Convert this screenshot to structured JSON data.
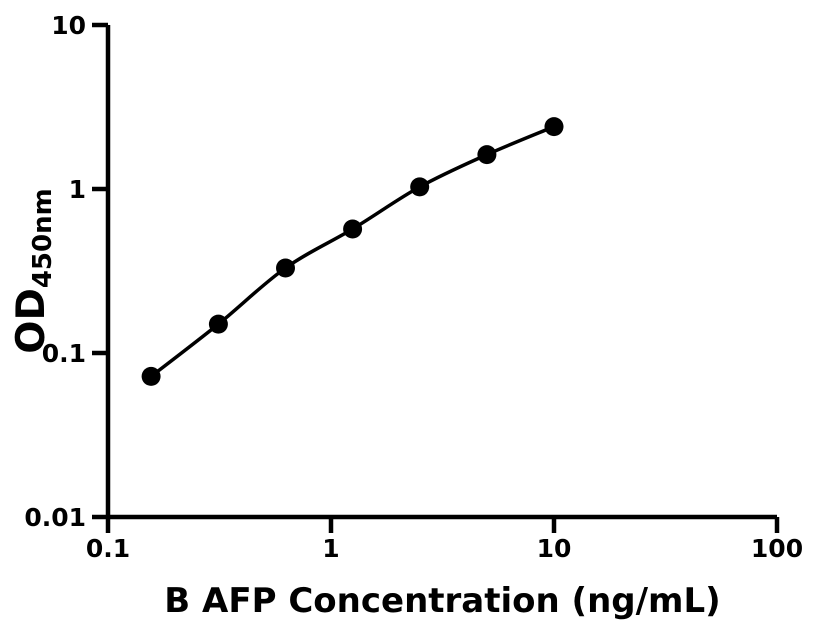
{
  "figure": {
    "background": "#ffffff"
  },
  "chart_data": {
    "type": "line",
    "subtype": "scatter-with-smooth-fit-curve",
    "title": "",
    "xlabel": "B AFP Concentration (ng/mL)",
    "ylabel_main": "OD",
    "ylabel_sub": "450nm",
    "x_scale": "log",
    "y_scale": "log",
    "xlim": [
      0.1,
      100
    ],
    "ylim": [
      0.01,
      10
    ],
    "x_ticks": [
      {
        "value": 0.1,
        "label": "0.1"
      },
      {
        "value": 1,
        "label": "1"
      },
      {
        "value": 10,
        "label": "10"
      },
      {
        "value": 100,
        "label": "100"
      }
    ],
    "y_ticks": [
      {
        "value": 10,
        "label": "10"
      },
      {
        "value": 1,
        "label": "1"
      },
      {
        "value": 0.1,
        "label": "0.1"
      },
      {
        "value": 0.01,
        "label": "0.01"
      }
    ],
    "series": [
      {
        "x": [
          0.156,
          0.3125,
          0.625,
          1.25,
          2.5,
          5,
          10
        ],
        "y": [
          0.072,
          0.15,
          0.33,
          0.57,
          1.03,
          1.62,
          2.4
        ],
        "marker": "circle",
        "marker_color": "#000000",
        "line_color": "#000000"
      }
    ],
    "grid": false,
    "legend": false,
    "axis_color": "#000000"
  }
}
